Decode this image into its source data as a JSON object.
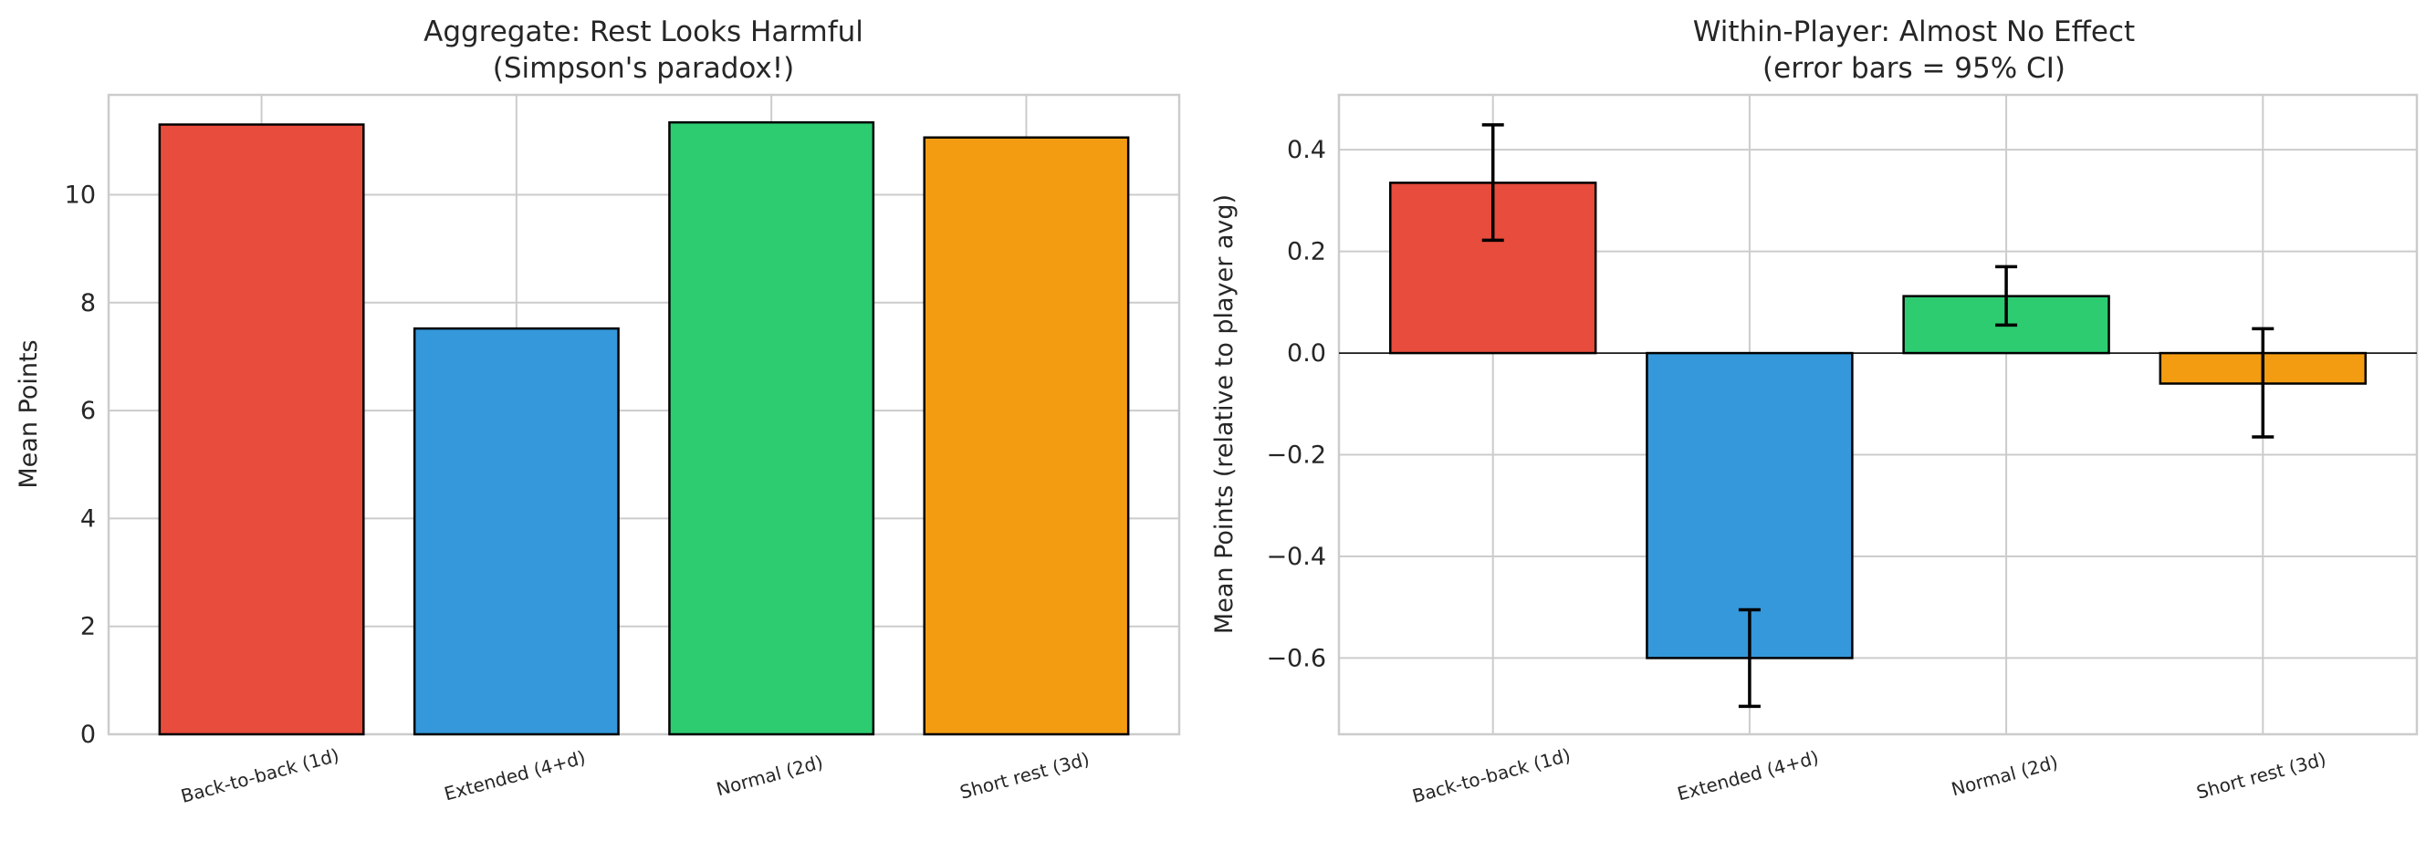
{
  "chart_data": [
    {
      "type": "bar",
      "title": "Aggregate: Rest Looks Harmful",
      "subtitle": "(Simpson's paradox!)",
      "xlabel": "",
      "ylabel": "Mean Points",
      "categories": [
        "Back-to-back (1d)",
        "Extended (4+d)",
        "Normal (2d)",
        "Short rest (3d)"
      ],
      "values": [
        11.3,
        7.52,
        11.34,
        11.06
      ],
      "colors": [
        "#e74c3c",
        "#3498db",
        "#2ecc71",
        "#f39c12"
      ],
      "ylim": [
        0,
        11.85
      ],
      "yticks": [
        0,
        2,
        4,
        6,
        8,
        10
      ],
      "ytick_labels": [
        "0",
        "2",
        "4",
        "6",
        "8",
        "10"
      ],
      "grid": true
    },
    {
      "type": "bar",
      "title": "Within-Player: Almost No Effect",
      "subtitle": "(error bars = 95% CI)",
      "xlabel": "",
      "ylabel": "Mean Points (relative to player avg)",
      "categories": [
        "Back-to-back (1d)",
        "Extended (4+d)",
        "Normal (2d)",
        "Short rest (3d)"
      ],
      "values": [
        0.335,
        -0.6,
        0.112,
        -0.06
      ],
      "ci_low": [
        0.222,
        -0.695,
        0.055,
        -0.165
      ],
      "ci_high": [
        0.449,
        -0.505,
        0.17,
        0.048
      ],
      "colors": [
        "#e74c3c",
        "#3498db",
        "#2ecc71",
        "#f39c12"
      ],
      "ylim": [
        -0.75,
        0.508
      ],
      "yticks": [
        -0.6,
        -0.4,
        -0.2,
        0.0,
        0.2,
        0.4
      ],
      "ytick_labels": [
        "−0.6",
        "−0.4",
        "−0.2",
        "0.0",
        "0.2",
        "0.4"
      ],
      "zero_line": true,
      "grid": true
    }
  ]
}
